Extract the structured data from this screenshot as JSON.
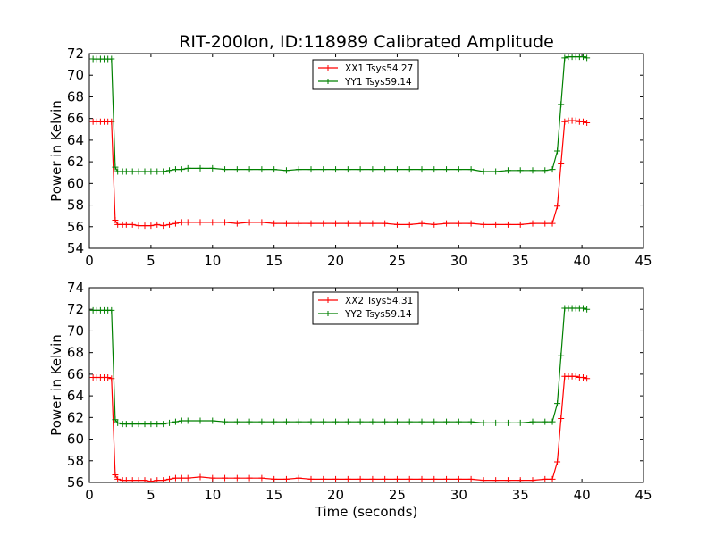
{
  "figure": {
    "title": "RIT-200lon, ID:118989 Calibrated Amplitude"
  },
  "chart_data": [
    {
      "type": "line",
      "title": "RIT-200lon, ID:118989 Calibrated Amplitude",
      "xlabel": "",
      "ylabel": "Power in Kelvin",
      "xlim": [
        0,
        45
      ],
      "ylim": [
        54,
        72
      ],
      "xticks": [
        "0",
        "5",
        "10",
        "15",
        "20",
        "25",
        "30",
        "35",
        "40",
        "45"
      ],
      "yticks": [
        "54",
        "56",
        "58",
        "60",
        "62",
        "64",
        "66",
        "68",
        "70",
        "72"
      ],
      "grid": false,
      "legend_position": "top-center",
      "series": [
        {
          "name": "XX1 Tsys54.27",
          "color": "#ff0000",
          "x": [
            0.3,
            0.6,
            0.9,
            1.2,
            1.5,
            1.8,
            2.1,
            2.3,
            2.7,
            3.0,
            3.5,
            4.0,
            4.5,
            5.0,
            5.5,
            6.0,
            6.5,
            7.0,
            7.5,
            8.0,
            9.0,
            10.0,
            11.0,
            12.0,
            13.0,
            14.0,
            15.0,
            16.0,
            17.0,
            18.0,
            19.0,
            20.0,
            21.0,
            22.0,
            23.0,
            24.0,
            25.0,
            26.0,
            27.0,
            28.0,
            29.0,
            30.0,
            31.0,
            32.0,
            33.0,
            34.0,
            35.0,
            36.0,
            37.0,
            37.6,
            38.0,
            38.3,
            38.6,
            38.9,
            39.2,
            39.5,
            39.8,
            40.1,
            40.4
          ],
          "y": [
            65.7,
            65.7,
            65.7,
            65.7,
            65.7,
            65.7,
            56.6,
            56.2,
            56.2,
            56.2,
            56.2,
            56.1,
            56.1,
            56.1,
            56.2,
            56.1,
            56.2,
            56.3,
            56.4,
            56.4,
            56.4,
            56.4,
            56.4,
            56.3,
            56.4,
            56.4,
            56.3,
            56.3,
            56.3,
            56.3,
            56.3,
            56.3,
            56.3,
            56.3,
            56.3,
            56.3,
            56.2,
            56.2,
            56.3,
            56.2,
            56.3,
            56.3,
            56.3,
            56.2,
            56.2,
            56.2,
            56.2,
            56.3,
            56.3,
            56.3,
            57.9,
            61.8,
            65.7,
            65.8,
            65.8,
            65.8,
            65.7,
            65.7,
            65.6
          ]
        },
        {
          "name": "YY1 Tsys59.14",
          "color": "#008000",
          "x": [
            0.3,
            0.6,
            0.9,
            1.2,
            1.5,
            1.8,
            2.1,
            2.3,
            2.7,
            3.0,
            3.5,
            4.0,
            4.5,
            5.0,
            5.5,
            6.0,
            6.5,
            7.0,
            7.5,
            8.0,
            9.0,
            10.0,
            11.0,
            12.0,
            13.0,
            14.0,
            15.0,
            16.0,
            17.0,
            18.0,
            19.0,
            20.0,
            21.0,
            22.0,
            23.0,
            24.0,
            25.0,
            26.0,
            27.0,
            28.0,
            29.0,
            30.0,
            31.0,
            32.0,
            33.0,
            34.0,
            35.0,
            36.0,
            37.0,
            37.6,
            38.0,
            38.3,
            38.6,
            38.9,
            39.2,
            39.5,
            39.8,
            40.1,
            40.4
          ],
          "y": [
            71.5,
            71.5,
            71.5,
            71.5,
            71.5,
            71.5,
            61.5,
            61.1,
            61.1,
            61.1,
            61.1,
            61.1,
            61.1,
            61.1,
            61.1,
            61.1,
            61.2,
            61.3,
            61.3,
            61.4,
            61.4,
            61.4,
            61.3,
            61.3,
            61.3,
            61.3,
            61.3,
            61.2,
            61.3,
            61.3,
            61.3,
            61.3,
            61.3,
            61.3,
            61.3,
            61.3,
            61.3,
            61.3,
            61.3,
            61.3,
            61.3,
            61.3,
            61.3,
            61.1,
            61.1,
            61.2,
            61.2,
            61.2,
            61.2,
            61.3,
            63.0,
            67.3,
            71.6,
            71.7,
            71.7,
            71.7,
            71.7,
            71.7,
            71.6
          ]
        }
      ]
    },
    {
      "type": "line",
      "title": "",
      "xlabel": "Time (seconds)",
      "ylabel": "Power in Kelvin",
      "xlim": [
        0,
        45
      ],
      "ylim": [
        56,
        74
      ],
      "xticks": [
        "0",
        "5",
        "10",
        "15",
        "20",
        "25",
        "30",
        "35",
        "40",
        "45"
      ],
      "yticks": [
        "56",
        "58",
        "60",
        "62",
        "64",
        "66",
        "68",
        "70",
        "72",
        "74"
      ],
      "grid": false,
      "legend_position": "top-center",
      "series": [
        {
          "name": "XX2 Tsys54.31",
          "color": "#ff0000",
          "x": [
            0.3,
            0.6,
            0.9,
            1.2,
            1.5,
            1.8,
            2.1,
            2.3,
            2.7,
            3.0,
            3.5,
            4.0,
            4.5,
            5.0,
            5.5,
            6.0,
            6.5,
            7.0,
            7.5,
            8.0,
            9.0,
            10.0,
            11.0,
            12.0,
            13.0,
            14.0,
            15.0,
            16.0,
            17.0,
            18.0,
            19.0,
            20.0,
            21.0,
            22.0,
            23.0,
            24.0,
            25.0,
            26.0,
            27.0,
            28.0,
            29.0,
            30.0,
            31.0,
            32.0,
            33.0,
            34.0,
            35.0,
            36.0,
            37.0,
            37.6,
            38.0,
            38.3,
            38.6,
            38.9,
            39.2,
            39.5,
            39.8,
            40.1,
            40.4
          ],
          "y": [
            65.7,
            65.7,
            65.7,
            65.7,
            65.7,
            65.6,
            56.7,
            56.3,
            56.2,
            56.2,
            56.2,
            56.2,
            56.2,
            56.1,
            56.2,
            56.2,
            56.3,
            56.4,
            56.4,
            56.4,
            56.5,
            56.4,
            56.4,
            56.4,
            56.4,
            56.4,
            56.3,
            56.3,
            56.4,
            56.3,
            56.3,
            56.3,
            56.3,
            56.3,
            56.3,
            56.3,
            56.3,
            56.3,
            56.3,
            56.3,
            56.3,
            56.3,
            56.3,
            56.2,
            56.2,
            56.2,
            56.2,
            56.2,
            56.3,
            56.3,
            57.9,
            61.9,
            65.8,
            65.8,
            65.8,
            65.8,
            65.7,
            65.7,
            65.6
          ]
        },
        {
          "name": "YY2 Tsys59.14",
          "color": "#008000",
          "x": [
            0.3,
            0.6,
            0.9,
            1.2,
            1.5,
            1.8,
            2.1,
            2.3,
            2.7,
            3.0,
            3.5,
            4.0,
            4.5,
            5.0,
            5.5,
            6.0,
            6.5,
            7.0,
            7.5,
            8.0,
            9.0,
            10.0,
            11.0,
            12.0,
            13.0,
            14.0,
            15.0,
            16.0,
            17.0,
            18.0,
            19.0,
            20.0,
            21.0,
            22.0,
            23.0,
            24.0,
            25.0,
            26.0,
            27.0,
            28.0,
            29.0,
            30.0,
            31.0,
            32.0,
            33.0,
            34.0,
            35.0,
            36.0,
            37.0,
            37.6,
            38.0,
            38.3,
            38.6,
            38.9,
            39.2,
            39.5,
            39.8,
            40.1,
            40.4
          ],
          "y": [
            71.9,
            71.9,
            71.9,
            71.9,
            71.9,
            71.9,
            61.8,
            61.5,
            61.4,
            61.4,
            61.4,
            61.4,
            61.4,
            61.4,
            61.4,
            61.4,
            61.5,
            61.6,
            61.7,
            61.7,
            61.7,
            61.7,
            61.6,
            61.6,
            61.6,
            61.6,
            61.6,
            61.6,
            61.6,
            61.6,
            61.6,
            61.6,
            61.6,
            61.6,
            61.6,
            61.6,
            61.6,
            61.6,
            61.6,
            61.6,
            61.6,
            61.6,
            61.6,
            61.5,
            61.5,
            61.5,
            61.5,
            61.6,
            61.6,
            61.6,
            63.3,
            67.7,
            72.1,
            72.1,
            72.1,
            72.1,
            72.1,
            72.1,
            72.0
          ]
        }
      ]
    }
  ]
}
